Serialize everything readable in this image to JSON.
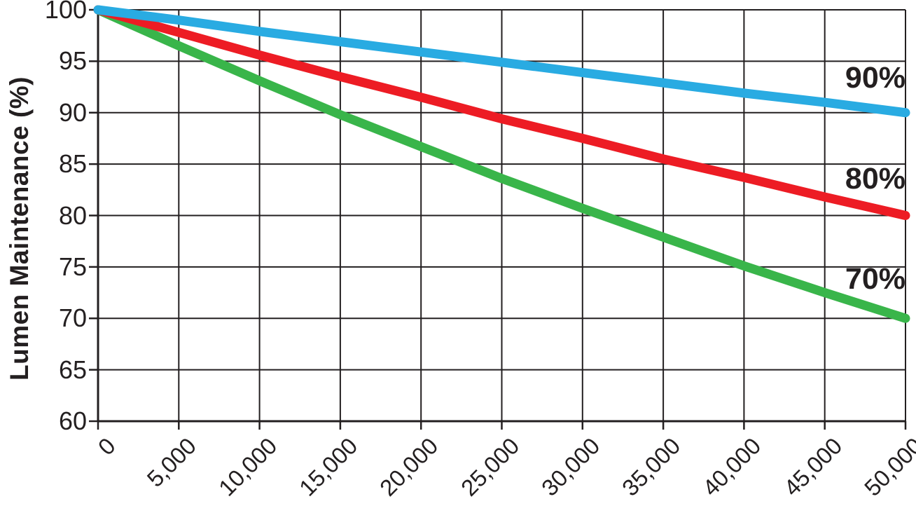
{
  "page": {
    "background": "#ffffff",
    "text_color": "#231F20"
  },
  "chart_data": {
    "type": "line",
    "title": "",
    "xlabel": "",
    "ylabel": "Lumen Maintenance (%)",
    "xlim": [
      0,
      50000
    ],
    "ylim": [
      60,
      100
    ],
    "grid": true,
    "grid_color": "#231F20",
    "axis_color": "#231F20",
    "legend_position": "inline-right",
    "x": [
      0,
      5000,
      10000,
      15000,
      20000,
      25000,
      30000,
      35000,
      40000,
      45000,
      50000
    ],
    "x_tick_labels": [
      "0",
      "5,000",
      "10,000",
      "15,000",
      "20,000",
      "25,000",
      "30,000",
      "35,000",
      "40,000",
      "45,000",
      "50,000"
    ],
    "y_ticks": [
      100,
      95,
      90,
      85,
      80,
      75,
      70,
      65,
      60
    ],
    "y_tick_labels": [
      "100",
      "95",
      "90",
      "85",
      "80",
      "75",
      "70",
      "65",
      "60"
    ],
    "series": [
      {
        "name": "lumen-maintenance-90-percent",
        "label": "90%",
        "color": "#29ABE2",
        "label_value": 93.4,
        "values": [
          100,
          99.0,
          97.9,
          96.9,
          95.9,
          94.9,
          93.9,
          92.9,
          91.9,
          91.0,
          90
        ]
      },
      {
        "name": "lumen-maintenance-80-percent",
        "label": "80%",
        "color": "#ED1C24",
        "label_value": 83.6,
        "values": [
          100,
          97.8,
          95.6,
          93.5,
          91.5,
          89.4,
          87.5,
          85.5,
          83.7,
          81.8,
          80
        ]
      },
      {
        "name": "lumen-maintenance-70-percent",
        "label": "70%",
        "color": "#39B54A",
        "label_value": 73.8,
        "values": [
          100,
          96.5,
          93.1,
          89.8,
          86.7,
          83.6,
          80.7,
          77.9,
          75.1,
          72.5,
          70
        ]
      }
    ]
  }
}
